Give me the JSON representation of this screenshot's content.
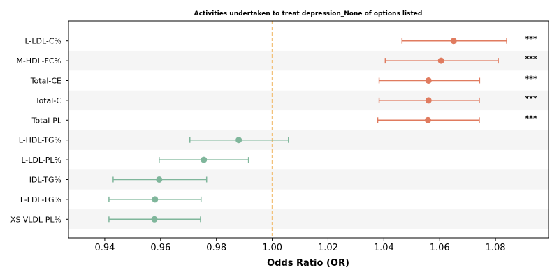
{
  "chart_data": {
    "type": "forest",
    "title": "Activities undertaken to treat depression_None of options listed",
    "xlabel": "Odds Ratio (OR)",
    "xlim": [
      0.927,
      1.099
    ],
    "xticks": [
      "0.94",
      "0.96",
      "0.98",
      "1.00",
      "1.02",
      "1.04",
      "1.06",
      "1.08"
    ],
    "reference_line": 1.0,
    "colors": {
      "positive": "#e07b5f",
      "negative": "#7fb69b",
      "reference": "#f2c17a",
      "stripe": "#f5f5f5",
      "axis": "#000000"
    },
    "rows": [
      {
        "label": "L-LDL-C%",
        "or": 1.065,
        "lo": 1.0465,
        "hi": 1.084,
        "sig": "***",
        "group": "positive"
      },
      {
        "label": "M-HDL-FC%",
        "or": 1.0605,
        "lo": 1.0405,
        "hi": 1.081,
        "sig": "***",
        "group": "positive"
      },
      {
        "label": "Total-CE",
        "or": 1.056,
        "lo": 1.0383,
        "hi": 1.0743,
        "sig": "***",
        "group": "positive"
      },
      {
        "label": "Total-C",
        "or": 1.056,
        "lo": 1.0383,
        "hi": 1.0742,
        "sig": "***",
        "group": "positive"
      },
      {
        "label": "Total-PL",
        "or": 1.0558,
        "lo": 1.0378,
        "hi": 1.0742,
        "sig": "***",
        "group": "positive"
      },
      {
        "label": "L-HDL-TG%",
        "or": 0.988,
        "lo": 0.9705,
        "hi": 1.0058,
        "sig": "",
        "group": "negative"
      },
      {
        "label": "L-LDL-PL%",
        "or": 0.9755,
        "lo": 0.9595,
        "hi": 0.9915,
        "sig": "",
        "group": "negative"
      },
      {
        "label": "IDL-TG%",
        "or": 0.9595,
        "lo": 0.943,
        "hi": 0.9765,
        "sig": "",
        "group": "negative"
      },
      {
        "label": "L-LDL-TG%",
        "or": 0.958,
        "lo": 0.9415,
        "hi": 0.9745,
        "sig": "",
        "group": "negative"
      },
      {
        "label": "XS-VLDL-PL%",
        "or": 0.9578,
        "lo": 0.9415,
        "hi": 0.9743,
        "sig": "",
        "group": "negative"
      }
    ]
  }
}
